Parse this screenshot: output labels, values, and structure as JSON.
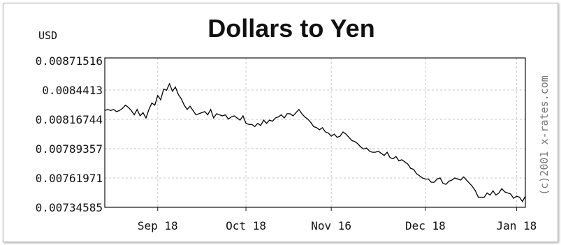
{
  "chart_data": {
    "type": "line",
    "title": "Dollars to Yen",
    "ylabel": "USD",
    "credit": "(c)2001 x-rates.com",
    "yticks": [
      "0.00871516",
      "0.0084413",
      "0.00816744",
      "0.00789357",
      "0.00761971",
      "0.00734585"
    ],
    "ylim": [
      0.00734585,
      0.00871516
    ],
    "xticks": [
      {
        "label": "Sep 18",
        "index": 18
      },
      {
        "label": "Oct 18",
        "index": 48
      },
      {
        "label": "Nov 16",
        "index": 77
      },
      {
        "label": "Dec 18",
        "index": 109
      },
      {
        "label": "Jan 18",
        "index": 140
      }
    ],
    "grid": true,
    "series": [
      {
        "color": "#000000",
        "values": [
          0.00825,
          0.00826,
          0.00825,
          0.00826,
          0.00824,
          0.00825,
          0.00827,
          0.0083,
          0.00828,
          0.00825,
          0.00821,
          0.00826,
          0.0082,
          0.00823,
          0.00818,
          0.00826,
          0.00832,
          0.0083,
          0.00839,
          0.00835,
          0.00845,
          0.00844,
          0.0085,
          0.00843,
          0.00847,
          0.0084,
          0.00836,
          0.0083,
          0.00826,
          0.00829,
          0.00825,
          0.00821,
          0.00822,
          0.00823,
          0.00824,
          0.00821,
          0.00826,
          0.00818,
          0.00822,
          0.00821,
          0.0082,
          0.00821,
          0.00817,
          0.00819,
          0.0082,
          0.00818,
          0.00816,
          0.0082,
          0.00813,
          0.00812,
          0.00812,
          0.0081,
          0.00813,
          0.00811,
          0.00816,
          0.00813,
          0.00816,
          0.00815,
          0.00818,
          0.00819,
          0.00821,
          0.00818,
          0.00822,
          0.00822,
          0.0082,
          0.00823,
          0.00826,
          0.00822,
          0.00819,
          0.00817,
          0.00814,
          0.0081,
          0.00809,
          0.00807,
          0.00809,
          0.00805,
          0.00804,
          0.00801,
          0.00803,
          0.008,
          0.00801,
          0.00805,
          0.00803,
          0.008,
          0.00797,
          0.00796,
          0.00794,
          0.00791,
          0.00789,
          0.0079,
          0.00787,
          0.00786,
          0.00786,
          0.00787,
          0.00785,
          0.00783,
          0.00786,
          0.00781,
          0.0078,
          0.00782,
          0.00778,
          0.00779,
          0.00777,
          0.00775,
          0.00771,
          0.0077,
          0.00766,
          0.00764,
          0.00762,
          0.00761,
          0.00761,
          0.00758,
          0.00758,
          0.00761,
          0.00762,
          0.00757,
          0.00756,
          0.00759,
          0.0076,
          0.00762,
          0.00761,
          0.0076,
          0.00763,
          0.0076,
          0.00757,
          0.00754,
          0.0075,
          0.00744,
          0.00744,
          0.00744,
          0.00748,
          0.00746,
          0.0075,
          0.00746,
          0.00748,
          0.00752,
          0.00749,
          0.00748,
          0.00747,
          0.00743,
          0.00745,
          0.00744,
          0.0074,
          0.00745
        ]
      }
    ]
  }
}
